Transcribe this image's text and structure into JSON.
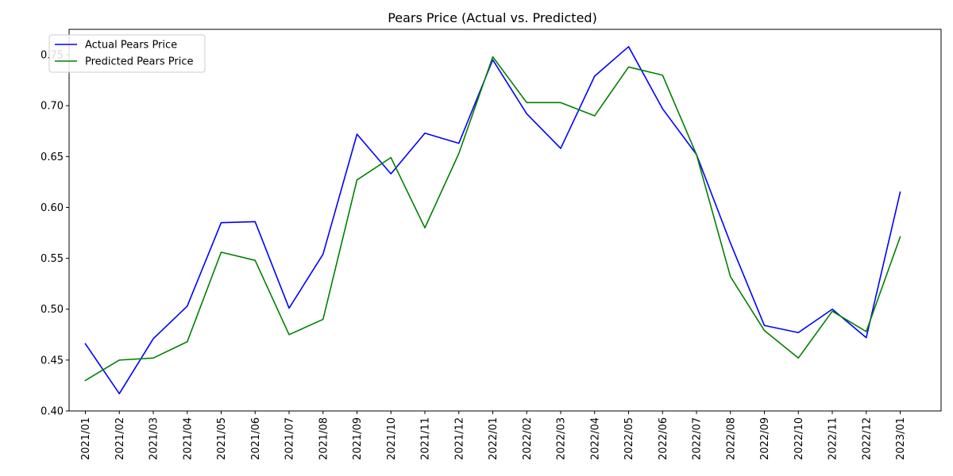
{
  "chart_data": {
    "type": "line",
    "title": "Pears Price (Actual vs. Predicted)",
    "xlabel": "",
    "ylabel": "",
    "categories": [
      "2021/01",
      "2021/02",
      "2021/03",
      "2021/04",
      "2021/05",
      "2021/06",
      "2021/07",
      "2021/08",
      "2021/09",
      "2021/10",
      "2021/11",
      "2021/12",
      "2022/01",
      "2022/02",
      "2022/03",
      "2022/04",
      "2022/05",
      "2022/06",
      "2022/07",
      "2022/08",
      "2022/09",
      "2022/10",
      "2022/11",
      "2022/12",
      "2023/01"
    ],
    "ylim": [
      0.4,
      0.775
    ],
    "yticks": [
      "0.40",
      "0.45",
      "0.50",
      "0.55",
      "0.60",
      "0.65",
      "0.70",
      "0.75"
    ],
    "grid": false,
    "legend_position": "top-left",
    "series": [
      {
        "name": "Actual Pears Price",
        "color": "#0000ff",
        "values": [
          0.466,
          0.417,
          0.471,
          0.503,
          0.585,
          0.586,
          0.501,
          0.554,
          0.672,
          0.633,
          0.673,
          0.663,
          0.745,
          0.692,
          0.658,
          0.729,
          0.758,
          0.697,
          0.652,
          0.565,
          0.484,
          0.477,
          0.5,
          0.472,
          0.615
        ]
      },
      {
        "name": "Predicted Pears Price",
        "color": "#008000",
        "values": [
          0.43,
          0.45,
          0.452,
          0.468,
          0.556,
          0.548,
          0.475,
          0.49,
          0.627,
          0.649,
          0.58,
          0.653,
          0.748,
          0.703,
          0.703,
          0.69,
          0.738,
          0.73,
          0.652,
          0.532,
          0.479,
          0.452,
          0.498,
          0.478,
          0.571
        ]
      }
    ]
  }
}
